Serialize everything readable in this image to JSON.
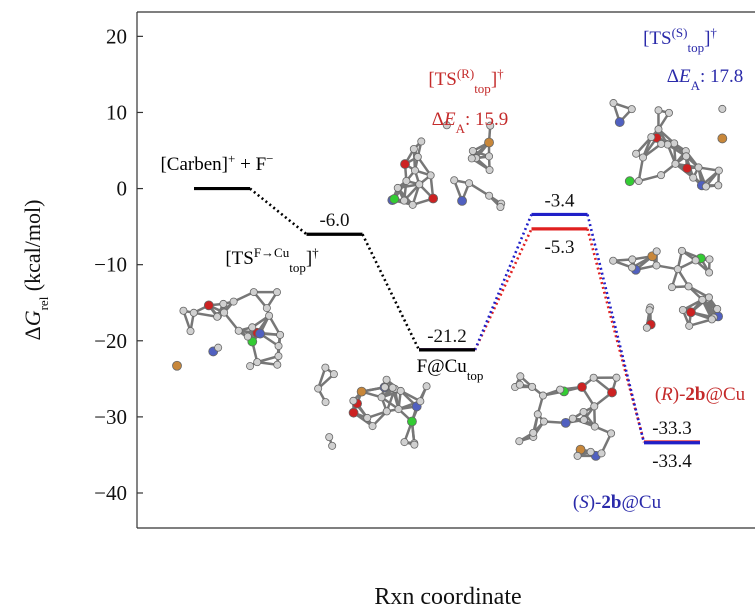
{
  "chart_data": {
    "type": "energy-diagram",
    "ylabel": [
      {
        "text": "Δ"
      },
      {
        "italic": "G"
      },
      {
        "sub": "rel"
      },
      {
        "text": " (kcal/mol)"
      }
    ],
    "xlabel": "Rxn coordinate",
    "ylim": [
      -44.6,
      23.2
    ],
    "yticks": [
      {
        "value": -40,
        "label": "−40"
      },
      {
        "value": -30,
        "label": "−30"
      },
      {
        "value": -20,
        "label": "−20"
      },
      {
        "value": -10,
        "label": "−10"
      },
      0,
      10,
      20
    ],
    "categories": [
      null,
      null,
      null,
      null,
      null
    ],
    "series": [
      {
        "color": "#000000",
        "values": [
          0,
          -6.0,
          -21.2,
          null,
          null
        ],
        "value_labels": [
          null,
          "-6.0",
          "-21.2",
          null,
          null
        ]
      },
      {
        "color": "#2020c8",
        "values": [
          null,
          null,
          -21.2,
          -3.4,
          -33.4
        ],
        "value_labels": [
          null,
          null,
          null,
          "-3.4",
          "-33.4"
        ]
      },
      {
        "color": "#e02020",
        "values": [
          null,
          null,
          -21.2,
          -5.3,
          -33.3
        ],
        "value_labels": [
          null,
          null,
          null,
          "-5.3",
          "-33.3"
        ]
      }
    ],
    "annotations": [
      {
        "color": "#000000",
        "parts": [
          {
            "text": "[Carben]"
          },
          {
            "sup": "+"
          },
          {
            "text": " + F"
          },
          {
            "sup": "−"
          }
        ]
      },
      {
        "color": "#000000",
        "parts": [
          {
            "text": "[TS"
          },
          {
            "sup": "F→Cu"
          },
          {
            "sub": "top"
          },
          {
            "text": "]"
          },
          {
            "sup": "†"
          }
        ]
      },
      {
        "color": "#000000",
        "parts": [
          {
            "text": "F@Cu"
          },
          {
            "sub": "top"
          }
        ]
      },
      {
        "color": "#c42a2a",
        "parts": [
          {
            "text": "[TS"
          },
          {
            "sup": "(R)"
          },
          {
            "sub": "top"
          },
          {
            "text": "]"
          },
          {
            "sup": "†"
          }
        ]
      },
      {
        "color": "#c42a2a",
        "parts": [
          {
            "text": "Δ"
          },
          {
            "italic": "E"
          },
          {
            "sub": "A"
          },
          {
            "text": ": 15.9"
          }
        ]
      },
      {
        "color": "#2a2aaa",
        "parts": [
          {
            "text": "[TS"
          },
          {
            "sup": "(S)"
          },
          {
            "sub": "top"
          },
          {
            "text": "]"
          },
          {
            "sup": "†"
          }
        ]
      },
      {
        "color": "#2a2aaa",
        "parts": [
          {
            "text": "Δ"
          },
          {
            "italic": "E"
          },
          {
            "sub": "A"
          },
          {
            "text": ": 17.8"
          }
        ]
      },
      {
        "color": "#c42a2a",
        "parts": [
          {
            "text": "("
          },
          {
            "italic": "R"
          },
          {
            "text": ")-"
          },
          {
            "bold": "2b"
          },
          {
            "text": "@Cu"
          }
        ]
      },
      {
        "color": "#2a2aaa",
        "parts": [
          {
            "text": "("
          },
          {
            "italic": "S"
          },
          {
            "text": ")-"
          },
          {
            "bold": "2b"
          },
          {
            "text": "@Cu"
          }
        ]
      }
    ]
  }
}
